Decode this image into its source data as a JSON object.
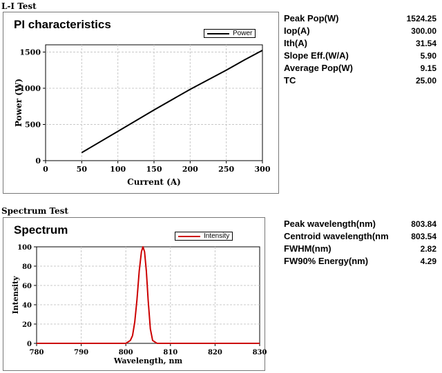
{
  "sections": {
    "li_title": "L-I Test",
    "spectrum_title": "Spectrum Test"
  },
  "li_stats": [
    {
      "label": "Peak Pop(W)",
      "value": "1524.25"
    },
    {
      "label": "Iop(A)",
      "value": "300.00"
    },
    {
      "label": "Ith(A)",
      "value": "31.54"
    },
    {
      "label": "Slope Eff.(W/A)",
      "value": "5.90"
    },
    {
      "label": "Average Pop(W)",
      "value": "9.15"
    },
    {
      "label": "TC",
      "value": "25.00"
    }
  ],
  "spectrum_stats": [
    {
      "label": "Peak wavelength(nm)",
      "value": "803.84"
    },
    {
      "label": "Centroid wavelength(nm",
      "value": "803.54"
    },
    {
      "label": "FWHM(nm)",
      "value": "2.82"
    },
    {
      "label": "FW90% Energy(nm)",
      "value": "4.29"
    }
  ],
  "colors": {
    "pi_line": "#000000",
    "spectrum_line": "#cc0000"
  },
  "chart_data": [
    {
      "type": "line",
      "title": "PI characteristics",
      "xlabel": "Current (A)",
      "ylabel": "Power (W)",
      "xlim": [
        0,
        300
      ],
      "ylim": [
        0,
        1600
      ],
      "xticks": [
        0,
        50,
        100,
        150,
        200,
        250,
        300
      ],
      "yticks": [
        0,
        500,
        1000,
        1500
      ],
      "grid": true,
      "legend": "top-right",
      "series": [
        {
          "name": "Power",
          "x": [
            50,
            100,
            150,
            200,
            250,
            275,
            300
          ],
          "y": [
            110,
            405,
            700,
            985,
            1250,
            1390,
            1524
          ]
        }
      ]
    },
    {
      "type": "line",
      "title": "Spectrum",
      "xlabel": "Wavelength, nm",
      "ylabel": "Intensity",
      "xlim": [
        780,
        830
      ],
      "ylim": [
        0,
        100
      ],
      "xticks": [
        780,
        790,
        800,
        810,
        820,
        830
      ],
      "yticks": [
        0,
        20,
        40,
        60,
        80,
        100
      ],
      "grid": true,
      "legend": "top-center",
      "series": [
        {
          "name": "Intensity",
          "x": [
            780,
            800,
            801,
            801.5,
            802,
            802.5,
            803,
            803.5,
            803.84,
            804.2,
            804.6,
            805,
            805.5,
            806,
            807,
            830
          ],
          "y": [
            0,
            0,
            3,
            8,
            22,
            45,
            75,
            95,
            100,
            95,
            75,
            45,
            15,
            3,
            0,
            0
          ]
        }
      ]
    }
  ]
}
